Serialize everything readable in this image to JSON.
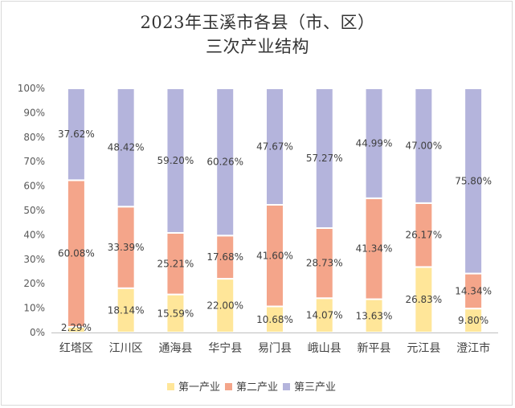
{
  "chart_data": {
    "type": "bar",
    "stacked": true,
    "percent_stacked": true,
    "title_lines": [
      "2023年玉溪市各县（市、区）",
      "三次产业结构"
    ],
    "categories": [
      "红塔区",
      "江川区",
      "通海县",
      "华宁县",
      "易门县",
      "峨山县",
      "新平县",
      "元江县",
      "澄江市"
    ],
    "series": [
      {
        "name": "第一产业",
        "color": "#ffe699",
        "values": [
          2.29,
          18.14,
          15.59,
          22.0,
          10.68,
          14.07,
          13.63,
          26.83,
          9.8
        ],
        "labels": [
          "2.29%",
          "18.14%",
          "15.59%",
          "22.00%",
          "10.68%",
          "14.07%",
          "13.63%",
          "26.83%",
          "9.80%"
        ]
      },
      {
        "name": "第二产业",
        "color": "#f4a58a",
        "values": [
          60.08,
          33.39,
          25.21,
          17.68,
          41.6,
          28.73,
          41.34,
          26.17,
          14.34
        ],
        "labels": [
          "60.08%",
          "33.39%",
          "25.21%",
          "17.68%",
          "41.60%",
          "28.73%",
          "41.34%",
          "26.17%",
          "14.34%"
        ]
      },
      {
        "name": "第三产业",
        "color": "#b4b4dc",
        "values": [
          37.62,
          48.42,
          59.2,
          60.26,
          47.67,
          57.27,
          44.99,
          47.0,
          75.8
        ],
        "labels": [
          "37.62%",
          "48.42%",
          "59.20%",
          "60.26%",
          "47.67%",
          "57.27%",
          "44.99%",
          "47.00%",
          "75.80%"
        ]
      }
    ],
    "yticks": [
      "0%",
      "10%",
      "20%",
      "30%",
      "40%",
      "50%",
      "60%",
      "70%",
      "80%",
      "90%",
      "100%"
    ],
    "ylim": [
      0,
      100
    ],
    "grid": false,
    "legend_position": "bottom"
  }
}
